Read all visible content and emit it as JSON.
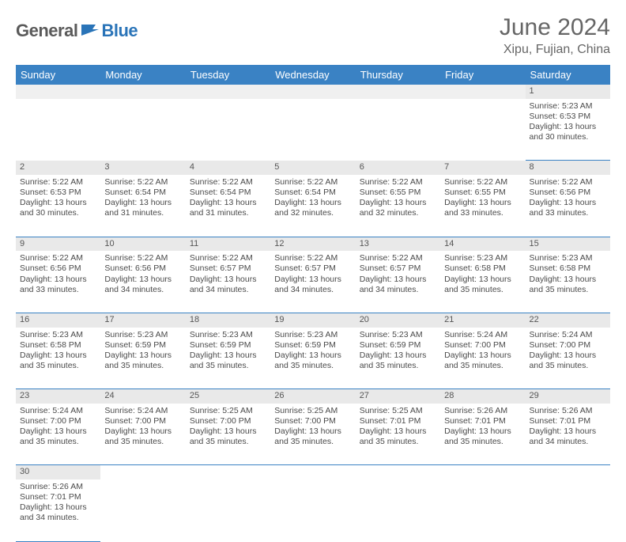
{
  "logo": {
    "dark": "General",
    "blue": "Blue"
  },
  "title": "June 2024",
  "location": "Xipu, Fujian, China",
  "colors": {
    "header_bg": "#3a82c4",
    "header_fg": "#ffffff",
    "daynum_bg": "#e9e9e9",
    "rule": "#3a82c4",
    "title_color": "#666666",
    "logo_dark": "#5a5a5a",
    "logo_blue": "#2a74b8"
  },
  "typography": {
    "title_size_pt": 22,
    "location_size_pt": 12,
    "header_size_pt": 10,
    "cell_size_pt": 8
  },
  "weekdays": [
    "Sunday",
    "Monday",
    "Tuesday",
    "Wednesday",
    "Thursday",
    "Friday",
    "Saturday"
  ],
  "start_weekday_index": 6,
  "days": [
    {
      "n": 1,
      "sunrise": "5:23 AM",
      "sunset": "6:53 PM",
      "daylight": "13 hours and 30 minutes."
    },
    {
      "n": 2,
      "sunrise": "5:22 AM",
      "sunset": "6:53 PM",
      "daylight": "13 hours and 30 minutes."
    },
    {
      "n": 3,
      "sunrise": "5:22 AM",
      "sunset": "6:54 PM",
      "daylight": "13 hours and 31 minutes."
    },
    {
      "n": 4,
      "sunrise": "5:22 AM",
      "sunset": "6:54 PM",
      "daylight": "13 hours and 31 minutes."
    },
    {
      "n": 5,
      "sunrise": "5:22 AM",
      "sunset": "6:54 PM",
      "daylight": "13 hours and 32 minutes."
    },
    {
      "n": 6,
      "sunrise": "5:22 AM",
      "sunset": "6:55 PM",
      "daylight": "13 hours and 32 minutes."
    },
    {
      "n": 7,
      "sunrise": "5:22 AM",
      "sunset": "6:55 PM",
      "daylight": "13 hours and 33 minutes."
    },
    {
      "n": 8,
      "sunrise": "5:22 AM",
      "sunset": "6:56 PM",
      "daylight": "13 hours and 33 minutes."
    },
    {
      "n": 9,
      "sunrise": "5:22 AM",
      "sunset": "6:56 PM",
      "daylight": "13 hours and 33 minutes."
    },
    {
      "n": 10,
      "sunrise": "5:22 AM",
      "sunset": "6:56 PM",
      "daylight": "13 hours and 34 minutes."
    },
    {
      "n": 11,
      "sunrise": "5:22 AM",
      "sunset": "6:57 PM",
      "daylight": "13 hours and 34 minutes."
    },
    {
      "n": 12,
      "sunrise": "5:22 AM",
      "sunset": "6:57 PM",
      "daylight": "13 hours and 34 minutes."
    },
    {
      "n": 13,
      "sunrise": "5:22 AM",
      "sunset": "6:57 PM",
      "daylight": "13 hours and 34 minutes."
    },
    {
      "n": 14,
      "sunrise": "5:23 AM",
      "sunset": "6:58 PM",
      "daylight": "13 hours and 35 minutes."
    },
    {
      "n": 15,
      "sunrise": "5:23 AM",
      "sunset": "6:58 PM",
      "daylight": "13 hours and 35 minutes."
    },
    {
      "n": 16,
      "sunrise": "5:23 AM",
      "sunset": "6:58 PM",
      "daylight": "13 hours and 35 minutes."
    },
    {
      "n": 17,
      "sunrise": "5:23 AM",
      "sunset": "6:59 PM",
      "daylight": "13 hours and 35 minutes."
    },
    {
      "n": 18,
      "sunrise": "5:23 AM",
      "sunset": "6:59 PM",
      "daylight": "13 hours and 35 minutes."
    },
    {
      "n": 19,
      "sunrise": "5:23 AM",
      "sunset": "6:59 PM",
      "daylight": "13 hours and 35 minutes."
    },
    {
      "n": 20,
      "sunrise": "5:23 AM",
      "sunset": "6:59 PM",
      "daylight": "13 hours and 35 minutes."
    },
    {
      "n": 21,
      "sunrise": "5:24 AM",
      "sunset": "7:00 PM",
      "daylight": "13 hours and 35 minutes."
    },
    {
      "n": 22,
      "sunrise": "5:24 AM",
      "sunset": "7:00 PM",
      "daylight": "13 hours and 35 minutes."
    },
    {
      "n": 23,
      "sunrise": "5:24 AM",
      "sunset": "7:00 PM",
      "daylight": "13 hours and 35 minutes."
    },
    {
      "n": 24,
      "sunrise": "5:24 AM",
      "sunset": "7:00 PM",
      "daylight": "13 hours and 35 minutes."
    },
    {
      "n": 25,
      "sunrise": "5:25 AM",
      "sunset": "7:00 PM",
      "daylight": "13 hours and 35 minutes."
    },
    {
      "n": 26,
      "sunrise": "5:25 AM",
      "sunset": "7:00 PM",
      "daylight": "13 hours and 35 minutes."
    },
    {
      "n": 27,
      "sunrise": "5:25 AM",
      "sunset": "7:01 PM",
      "daylight": "13 hours and 35 minutes."
    },
    {
      "n": 28,
      "sunrise": "5:26 AM",
      "sunset": "7:01 PM",
      "daylight": "13 hours and 35 minutes."
    },
    {
      "n": 29,
      "sunrise": "5:26 AM",
      "sunset": "7:01 PM",
      "daylight": "13 hours and 34 minutes."
    },
    {
      "n": 30,
      "sunrise": "5:26 AM",
      "sunset": "7:01 PM",
      "daylight": "13 hours and 34 minutes."
    }
  ],
  "labels": {
    "sunrise": "Sunrise:",
    "sunset": "Sunset:",
    "daylight": "Daylight:"
  }
}
